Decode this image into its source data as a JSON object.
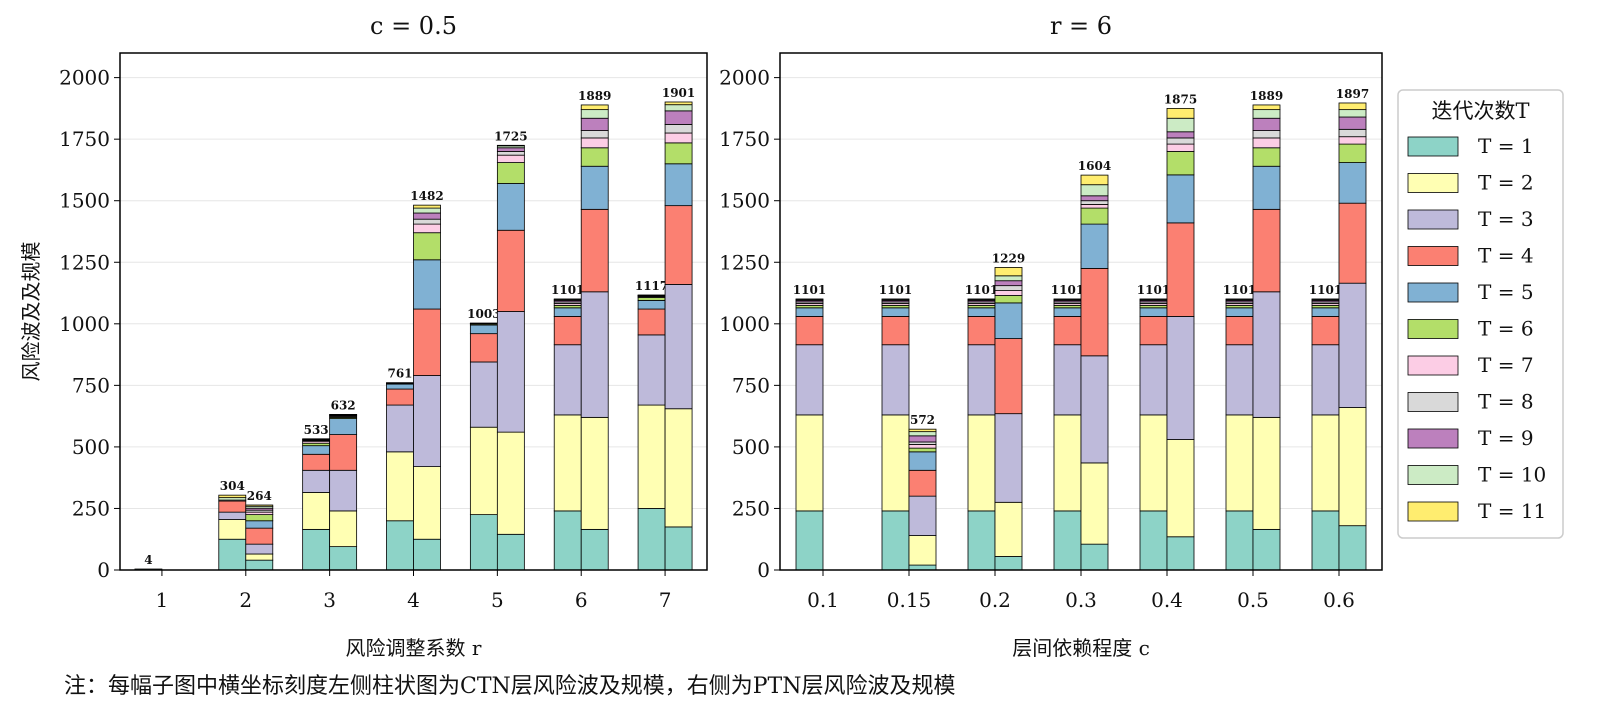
{
  "note": "注：每幅子图中横坐标刻度左侧柱状图为CTN层风险波及规模，右侧为PTN层风险波及规模",
  "legend": {
    "title": "迭代次数T",
    "labels": [
      "T = 1",
      "T = 2",
      "T = 3",
      "T = 4",
      "T = 5",
      "T = 6",
      "T = 7",
      "T = 8",
      "T = 9",
      "T = 10",
      "T = 11"
    ]
  },
  "colors": [
    "#8dd3c7",
    "#ffffb3",
    "#bebada",
    "#fb8072",
    "#80b1d3",
    "#b3de69",
    "#fccde5",
    "#d9d9d9",
    "#bc80bd",
    "#ccebc5",
    "#ffed6f"
  ],
  "chart_data": [
    {
      "type": "bar",
      "stacked": true,
      "title": "c = 0.5",
      "xlabel": "风险调整系数 r",
      "ylabel": "风险波及及规模",
      "ylim": [
        0,
        2100
      ],
      "yticks": [
        "0",
        "250",
        "500",
        "750",
        "1000",
        "1250",
        "1500",
        "1750",
        "2000"
      ],
      "categories": [
        "1",
        "2",
        "3",
        "4",
        "5",
        "6",
        "7"
      ],
      "grid": "horizontal",
      "groups": [
        {
          "category": "1",
          "ctn": {
            "total_label": "4",
            "segments": [
              4
            ]
          },
          "ptn": null
        },
        {
          "category": "2",
          "ctn": {
            "total_label": "304",
            "segments": [
              125,
              80,
              30,
              45,
              0,
              0,
              0,
              4,
              0,
              10,
              10
            ]
          },
          "ptn": {
            "total_label": "264",
            "segments": [
              40,
              25,
              40,
              65,
              30,
              25,
              10,
              8,
              8,
              8,
              5
            ]
          }
        },
        {
          "category": "3",
          "ctn": {
            "total_label": "533",
            "segments": [
              165,
              150,
              90,
              65,
              35,
              10,
              8,
              3,
              3,
              2,
              2
            ]
          },
          "ptn": {
            "total_label": "632",
            "segments": [
              95,
              145,
              165,
              145,
              65,
              5,
              4,
              3,
              2,
              2,
              1
            ]
          }
        },
        {
          "category": "4",
          "ctn": {
            "total_label": "761",
            "segments": [
              200,
              280,
              190,
              65,
              20,
              3,
              1,
              1,
              1,
              0,
              0
            ]
          },
          "ptn": {
            "total_label": "1482",
            "segments": [
              125,
              295,
              370,
              270,
              200,
              110,
              35,
              20,
              25,
              20,
              12
            ]
          }
        },
        {
          "category": "5",
          "ctn": {
            "total_label": "1003",
            "segments": [
              225,
              355,
              265,
              115,
              35,
              5,
              1,
              1,
              1,
              0,
              0
            ]
          },
          "ptn": {
            "total_label": "1725",
            "segments": [
              145,
              415,
              490,
              330,
              190,
              85,
              30,
              15,
              15,
              8,
              2
            ]
          }
        },
        {
          "category": "6",
          "ctn": {
            "total_label": "1101",
            "segments": [
              240,
              390,
              285,
              115,
              35,
              10,
              8,
              6,
              6,
              4,
              2
            ]
          },
          "ptn": {
            "total_label": "1889",
            "segments": [
              165,
              455,
              510,
              335,
              175,
              75,
              40,
              30,
              50,
              35,
              19
            ]
          }
        },
        {
          "category": "7",
          "ctn": {
            "total_label": "1117",
            "segments": [
              250,
              420,
              285,
              105,
              35,
              12,
              4,
              2,
              2,
              1,
              1
            ]
          },
          "ptn": {
            "total_label": "1901",
            "segments": [
              175,
              480,
              505,
              320,
              170,
              85,
              40,
              35,
              55,
              25,
              11
            ]
          }
        }
      ]
    },
    {
      "type": "bar",
      "stacked": true,
      "title": "r = 6",
      "xlabel": "层间依赖程度 c",
      "ylabel": "",
      "ylim": [
        0,
        2100
      ],
      "yticks": [
        "0",
        "250",
        "500",
        "750",
        "1000",
        "1250",
        "1500",
        "1750",
        "2000"
      ],
      "categories": [
        "0.1",
        "0.15",
        "0.2",
        "0.3",
        "0.4",
        "0.5",
        "0.6"
      ],
      "grid": "horizontal",
      "groups": [
        {
          "category": "0.1",
          "ctn": {
            "total_label": "1101",
            "segments": [
              240,
              390,
              285,
              115,
              35,
              10,
              8,
              6,
              6,
              4,
              2
            ]
          },
          "ptn": null
        },
        {
          "category": "0.15",
          "ctn": {
            "total_label": "1101",
            "segments": [
              240,
              390,
              285,
              115,
              35,
              10,
              8,
              6,
              6,
              4,
              2
            ]
          },
          "ptn": {
            "total_label": "572",
            "segments": [
              20,
              120,
              160,
              105,
              75,
              15,
              15,
              10,
              25,
              17,
              10
            ]
          }
        },
        {
          "category": "0.2",
          "ctn": {
            "total_label": "1101",
            "segments": [
              240,
              390,
              285,
              115,
              35,
              10,
              8,
              6,
              6,
              4,
              2
            ]
          },
          "ptn": {
            "total_label": "1229",
            "segments": [
              55,
              220,
              360,
              305,
              145,
              30,
              20,
              20,
              20,
              20,
              34
            ]
          }
        },
        {
          "category": "0.3",
          "ctn": {
            "total_label": "1101",
            "segments": [
              240,
              390,
              285,
              115,
              35,
              10,
              8,
              6,
              6,
              4,
              2
            ]
          },
          "ptn": {
            "total_label": "1604",
            "segments": [
              105,
              330,
              435,
              355,
              180,
              65,
              15,
              15,
              20,
              45,
              39
            ]
          }
        },
        {
          "category": "0.4",
          "ctn": {
            "total_label": "1101",
            "segments": [
              240,
              390,
              285,
              115,
              35,
              10,
              8,
              6,
              6,
              4,
              2
            ]
          },
          "ptn": {
            "total_label": "1875",
            "segments": [
              135,
              395,
              500,
              380,
              195,
              95,
              30,
              25,
              25,
              55,
              40
            ]
          }
        },
        {
          "category": "0.5",
          "ctn": {
            "total_label": "1101",
            "segments": [
              240,
              390,
              285,
              115,
              35,
              10,
              8,
              6,
              6,
              4,
              2
            ]
          },
          "ptn": {
            "total_label": "1889",
            "segments": [
              165,
              455,
              510,
              335,
              175,
              75,
              40,
              30,
              50,
              35,
              19
            ]
          }
        },
        {
          "category": "0.6",
          "ctn": {
            "total_label": "1101",
            "segments": [
              240,
              390,
              285,
              115,
              35,
              10,
              8,
              6,
              6,
              4,
              2
            ]
          },
          "ptn": {
            "total_label": "1897",
            "segments": [
              180,
              480,
              505,
              325,
              165,
              75,
              30,
              30,
              50,
              30,
              27
            ]
          }
        }
      ]
    }
  ]
}
